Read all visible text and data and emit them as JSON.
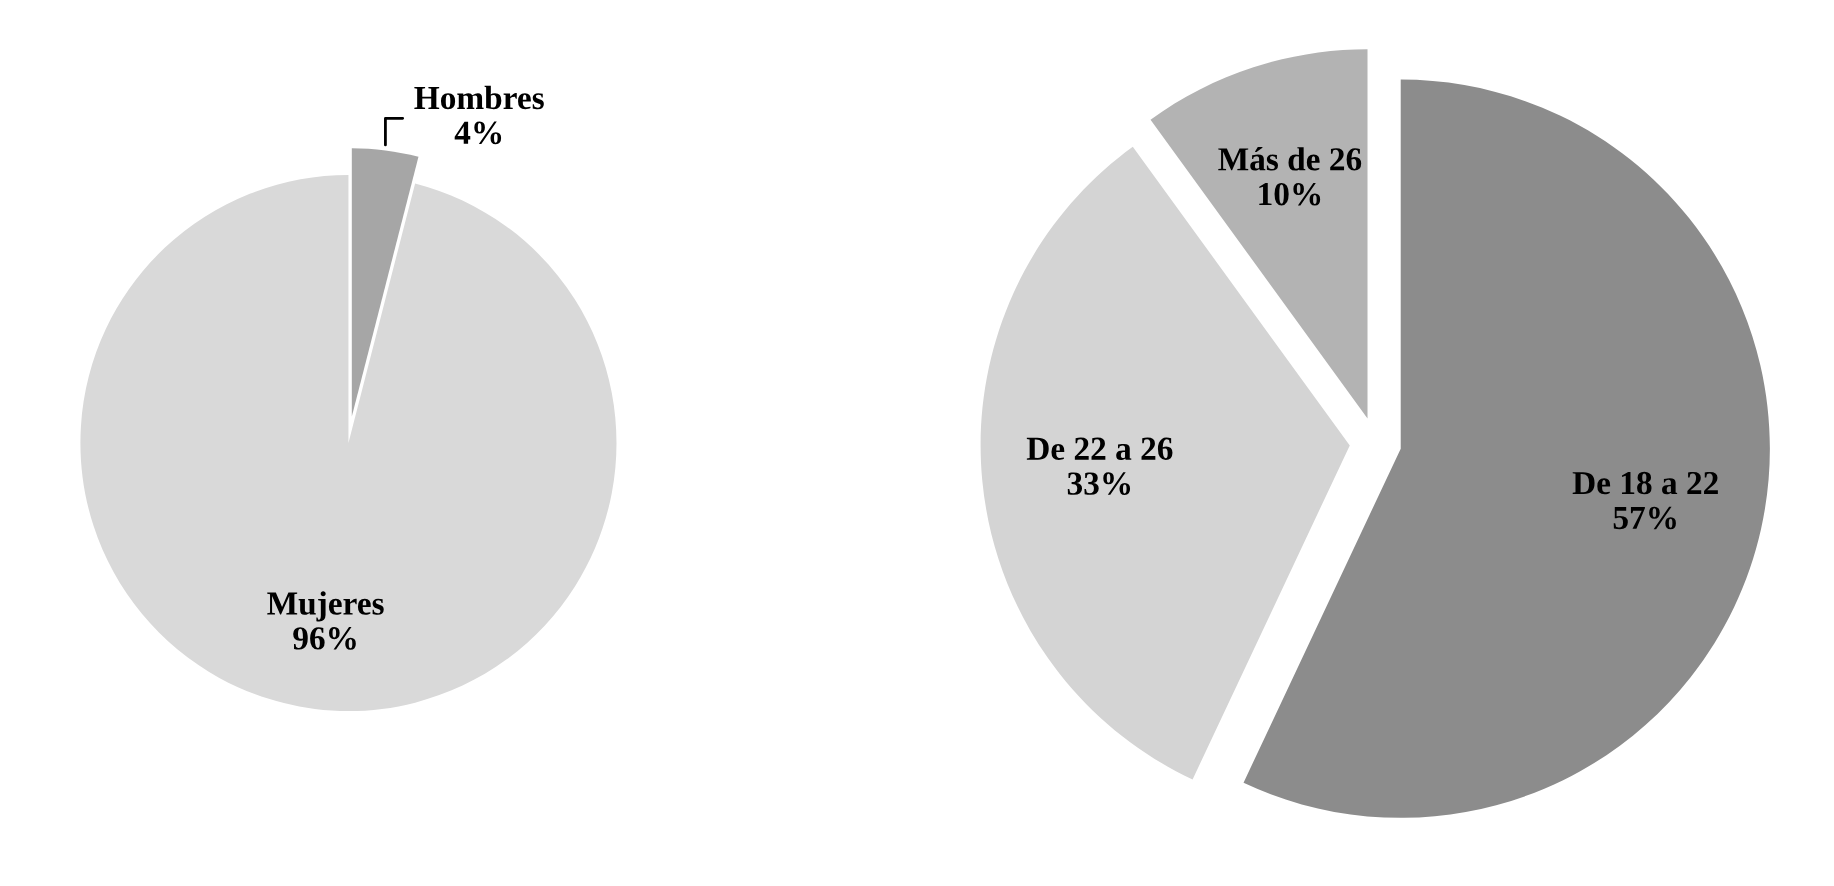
{
  "chart_data": [
    {
      "type": "pie",
      "categories": [
        "Hombres",
        "Mujeres"
      ],
      "values": [
        4,
        96
      ],
      "colors": [
        "#a6a6a6",
        "#d9d9d9"
      ],
      "value_labels": [
        "4%",
        "96%"
      ]
    },
    {
      "type": "pie",
      "categories": [
        "De 18 a 22",
        "De 22 a 26",
        "Más de 26"
      ],
      "values": [
        57,
        33,
        10
      ],
      "colors": [
        "#8c8c8c",
        "#d4d4d4",
        "#b3b3b3"
      ],
      "value_labels": [
        "57%",
        "33%",
        "10%"
      ]
    }
  ]
}
